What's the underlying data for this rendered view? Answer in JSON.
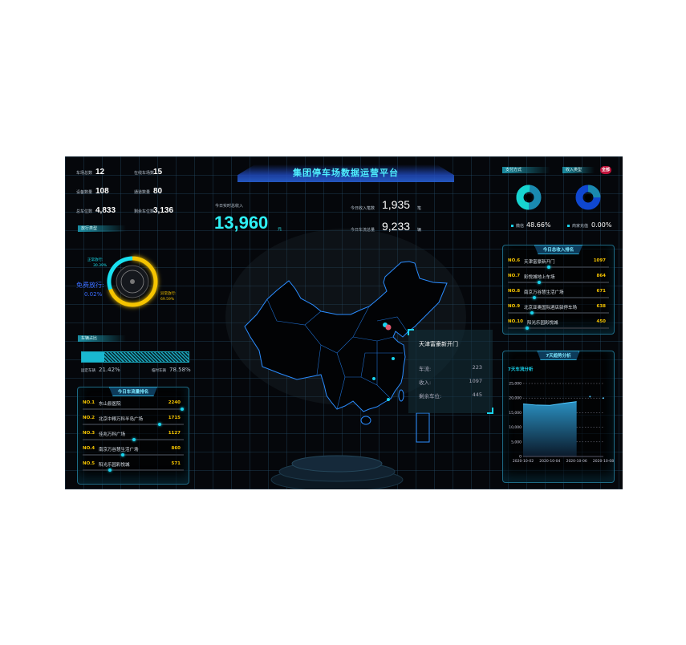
{
  "title": "集团停车场数据运营平台",
  "stats": [
    {
      "label": "车场总数",
      "value": "12"
    },
    {
      "label": "在线车场数",
      "value": "15"
    },
    {
      "label": "设备数量",
      "value": "108"
    },
    {
      "label": "通道数量",
      "value": "80"
    },
    {
      "label": "总车位数",
      "value": "4,833"
    },
    {
      "label": "剩余车位数",
      "value": "3,136"
    }
  ],
  "release": {
    "tag": "放行类型",
    "normal_label": "正常放行:",
    "normal_pct": "30.39%",
    "abnormal_label": "异常放行:",
    "abnormal_pct": "69.59%",
    "free_label": "免费放行:",
    "free_pct": "0.02%",
    "normal": 30.39,
    "abnormal": 69.59,
    "free": 0.02,
    "colors": {
      "normal": "#19e0f0",
      "abnormal": "#f5c400",
      "free": "#2255ff"
    }
  },
  "ratio": {
    "tag": "车辆占比",
    "left_label": "固定车辆",
    "left_pct": "21.42%",
    "right_label": "临时车辆",
    "right_pct": "78.58%",
    "left": 21.42
  },
  "center": {
    "revenue_label": "今日实时总收入",
    "revenue": "13,960",
    "revenue_unit": "元",
    "count_label": "今日收入笔数",
    "count": "1,935",
    "count_unit": "笔",
    "flow_label": "今日车流总量",
    "flow": "9,233",
    "flow_unit": "辆"
  },
  "traffic_rank": {
    "title": "今日车流量排名",
    "items": [
      {
        "no": "NO.1",
        "name": "东山县医院",
        "value": "2240",
        "pct": 100
      },
      {
        "no": "NO.2",
        "name": "北京中粮万科半岛广场",
        "value": "1715",
        "pct": 77
      },
      {
        "no": "NO.3",
        "name": "佳兆万科广场",
        "value": "1127",
        "pct": 51
      },
      {
        "no": "NO.4",
        "name": "南京万谷慧生活广场",
        "value": "860",
        "pct": 39
      },
      {
        "no": "NO.5",
        "name": "阳光乐园彩悦城",
        "value": "571",
        "pct": 26
      }
    ]
  },
  "payment": {
    "tag": "支付方式",
    "legend": "微信",
    "pct": "48.66%",
    "share": 48.66
  },
  "income_type": {
    "tag": "收入类型",
    "badge": "全部",
    "legend": "商家充值",
    "pct": "0.00%"
  },
  "income_rank": {
    "title": "今日总收入排名",
    "items": [
      {
        "no": "NO.6",
        "name": "天津富豪新开门",
        "value": "1097",
        "pct": 40
      },
      {
        "no": "NO.7",
        "name": "彩悦城地上车场",
        "value": "864",
        "pct": 30
      },
      {
        "no": "NO.8",
        "name": "南京万谷慧生活广场",
        "value": "671",
        "pct": 25
      },
      {
        "no": "NO.9",
        "name": "北京亚奥国际酒店驿停车场",
        "value": "638",
        "pct": 23
      },
      {
        "no": "NO.10",
        "name": "阳光乐园彩悦城",
        "value": "450",
        "pct": 18
      }
    ]
  },
  "popup": {
    "title": "天津富豪新开门",
    "rows": [
      {
        "label": "车流:",
        "value": "223"
      },
      {
        "label": "收入:",
        "value": "1097"
      },
      {
        "label": "剩余车位:",
        "value": "445"
      }
    ]
  },
  "chart_data": {
    "type": "area",
    "panel_title": "7天趋势分析",
    "title": "7天车流分析",
    "x": [
      "2020-10-02",
      "2020-10-03",
      "2020-10-04",
      "2020-10-05",
      "2020-10-06",
      "2020-10-07",
      "2020-10-08"
    ],
    "xticks": [
      "2020-10-02",
      "2020-10-04",
      "2020-10-06",
      "2020-10-08"
    ],
    "values": [
      18000,
      17600,
      17500,
      18200,
      18800,
      20500,
      20000
    ],
    "yticks": [
      "0",
      "5,000",
      "10,000",
      "15,000",
      "20,000",
      "25,000"
    ],
    "ylim": [
      0,
      25000
    ],
    "grid": true
  }
}
